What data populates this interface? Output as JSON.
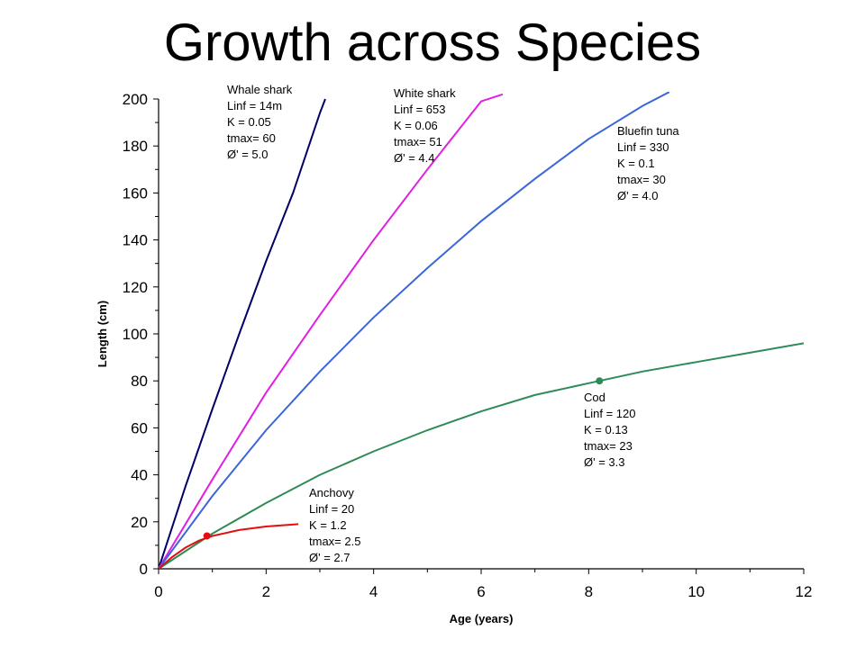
{
  "title": "Growth across Species",
  "chart_data": {
    "type": "line",
    "title": "Growth across Species",
    "xlabel": "Age (years)",
    "ylabel": "Length (cm)",
    "xlim": [
      0,
      12
    ],
    "ylim": [
      0,
      200
    ],
    "xticks": [
      0,
      2,
      4,
      6,
      8,
      10,
      12
    ],
    "yticks": [
      0,
      20,
      40,
      60,
      80,
      100,
      120,
      140,
      160,
      180,
      200
    ],
    "grid": false,
    "series": [
      {
        "name": "Whale shark",
        "color": "#000066",
        "x": [
          0,
          0.5,
          1,
          1.5,
          2,
          2.5,
          3,
          3.1
        ],
        "y": [
          0,
          35,
          68,
          100,
          131,
          160,
          194,
          200
        ],
        "annotation": [
          "Whale shark",
          "Linf = 14m",
          "K    = 0.05",
          "tmax= 60",
          "Ø'    = 5.0"
        ]
      },
      {
        "name": "White shark",
        "color": "#e020e0",
        "x": [
          0,
          1,
          2,
          3,
          4,
          5,
          6,
          6.4
        ],
        "y": [
          0,
          38,
          75,
          108,
          140,
          170,
          199,
          202
        ],
        "annotation": [
          "White shark",
          "Linf = 653",
          "K    = 0.06",
          "tmax= 51",
          "Ø'    = 4.4"
        ]
      },
      {
        "name": "Bluefin tuna",
        "color": "#3a66d9",
        "x": [
          0,
          1,
          2,
          3,
          4,
          5,
          6,
          7,
          8,
          9,
          9.5
        ],
        "y": [
          0,
          31,
          59,
          84,
          107,
          128,
          148,
          166,
          183,
          197,
          203
        ],
        "annotation": [
          "Bluefin tuna",
          "Linf = 330",
          "K    = 0.1",
          "tmax= 30",
          "Ø'    = 4.0"
        ]
      },
      {
        "name": "Cod",
        "color": "#2e8b57",
        "x": [
          0,
          1,
          2,
          3,
          4,
          5,
          6,
          7,
          8,
          9,
          10,
          11,
          12
        ],
        "y": [
          0,
          15,
          28,
          40,
          50,
          59,
          67,
          74,
          79,
          84,
          88,
          92,
          96
        ],
        "annotation": [
          "Cod",
          "Linf = 120",
          "K    = 0.13",
          "tmax= 23",
          "Ø'    = 3.3"
        ],
        "marker": {
          "x": 8.2,
          "y": 80
        }
      },
      {
        "name": "Anchovy",
        "color": "#e01010",
        "x": [
          0,
          0.25,
          0.5,
          0.75,
          1,
          1.5,
          2,
          2.6
        ],
        "y": [
          0,
          5,
          9,
          12,
          14,
          16.5,
          18,
          19
        ],
        "annotation": [
          "Anchovy",
          "Linf = 20",
          "K    = 1.2",
          "tmax= 2.5",
          "Ø'    = 2.7"
        ],
        "marker": {
          "x": 0.9,
          "y": 14
        }
      }
    ]
  }
}
